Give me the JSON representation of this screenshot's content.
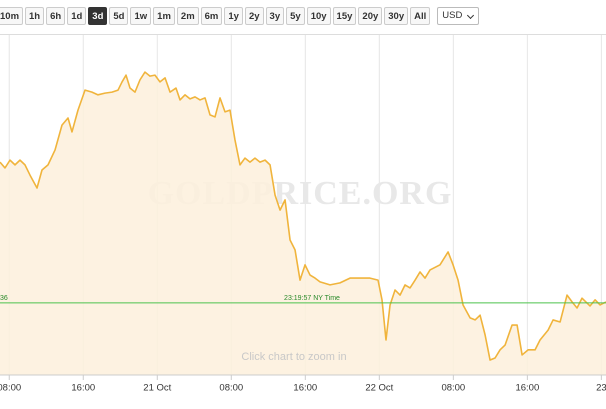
{
  "toolbar": {
    "buttons": [
      "10m",
      "1h",
      "6h",
      "1d",
      "3d",
      "5d",
      "1w",
      "1m",
      "2m",
      "6m",
      "1y",
      "2y",
      "3y",
      "5y",
      "10y",
      "15y",
      "20y",
      "30y",
      "All"
    ],
    "active": "3d",
    "currency": "USD"
  },
  "chart_data": {
    "type": "line",
    "watermark": "GOLDPRICE.ORG",
    "zoom_hint": "Click chart to zoom in",
    "color": "#f0b43c",
    "fill": "#fdf0dc",
    "xlim": [
      7,
      72.5
    ],
    "ylim": [
      0,
      100
    ],
    "xticks": [
      {
        "value": 8,
        "label": "08:00"
      },
      {
        "value": 16,
        "label": "16:00"
      },
      {
        "value": 24,
        "label": "21 Oct"
      },
      {
        "value": 32,
        "label": "08:00"
      },
      {
        "value": 40,
        "label": "16:00"
      },
      {
        "value": 48,
        "label": "22 Oct"
      },
      {
        "value": 56,
        "label": "08:00"
      },
      {
        "value": 64,
        "label": "16:00"
      },
      {
        "value": 72,
        "label": "23"
      }
    ],
    "reference_line": {
      "value": 21.2,
      "label": "36",
      "time_label": "23:19:57 NY Time",
      "color": "#4cc24c"
    },
    "x": [
      7,
      7.54,
      8.08,
      8.62,
      9.16,
      9.7,
      10.24,
      11.0,
      11.54,
      12.19,
      12.95,
      13.7,
      14.35,
      14.78,
      15.43,
      16.19,
      16.94,
      17.59,
      18.35,
      19.11,
      19.76,
      20.19,
      20.62,
      21.05,
      21.59,
      22.13,
      22.67,
      23.21,
      23.75,
      24.29,
      24.84,
      25.38,
      26.02,
      26.46,
      27.0,
      27.54,
      28.08,
      28.62,
      29.16,
      29.7,
      30.24,
      30.78,
      31.32,
      31.86,
      32.4,
      32.94,
      33.48,
      34.02,
      34.56,
      35.1,
      35.65,
      36.19,
      36.73,
      37.27,
      37.81,
      38.35,
      38.89,
      39.43,
      39.97,
      40.51,
      41.05,
      41.59,
      42.67,
      43.75,
      44.83,
      45.91,
      46.99,
      47.86,
      48.29,
      48.72,
      49.16,
      49.7,
      50.24,
      50.78,
      51.32,
      51.86,
      52.4,
      52.94,
      53.48,
      54.56,
      55.43,
      55.97,
      56.51,
      57.05,
      57.81,
      58.35,
      58.89,
      59.43,
      59.97,
      60.51,
      61.05,
      61.59,
      62.35,
      62.89,
      63.43,
      64.08,
      64.83,
      65.37,
      66.24,
      66.78,
      67.54,
      68.29,
      68.83,
      69.37,
      69.91,
      70.77,
      71.32,
      71.86,
      72.5
    ],
    "values": [
      62.6,
      60.9,
      63.2,
      61.8,
      63.2,
      61.8,
      58.8,
      55.0,
      60.3,
      61.8,
      66.2,
      73.5,
      75.6,
      71.5,
      77.9,
      83.8,
      83.2,
      82.4,
      82.9,
      83.2,
      83.8,
      86.2,
      88.2,
      84.4,
      83.2,
      86.8,
      89.1,
      87.9,
      88.2,
      86.2,
      87.4,
      83.2,
      84.4,
      80.9,
      82.4,
      81.2,
      81.8,
      80.9,
      81.5,
      76.5,
      75.9,
      81.5,
      77.4,
      77.9,
      69.1,
      61.8,
      63.8,
      62.6,
      63.8,
      62.6,
      63.2,
      61.8,
      52.9,
      48.5,
      51.5,
      39.7,
      36.8,
      27.9,
      32.4,
      29.4,
      28.5,
      27.4,
      26.5,
      27.1,
      28.5,
      28.5,
      28.5,
      27.9,
      22.1,
      10.3,
      20.6,
      25.0,
      23.5,
      26.5,
      25.6,
      27.9,
      30.3,
      28.5,
      30.9,
      32.4,
      36.2,
      32.4,
      27.9,
      20.6,
      16.8,
      16.2,
      17.6,
      11.8,
      4.4,
      5.0,
      7.4,
      8.8,
      14.7,
      14.7,
      5.9,
      7.4,
      7.4,
      10.3,
      13.2,
      16.2,
      15.6,
      23.5,
      21.5,
      19.7,
      22.6,
      20.3,
      22.1,
      20.6,
      21.5
    ]
  }
}
